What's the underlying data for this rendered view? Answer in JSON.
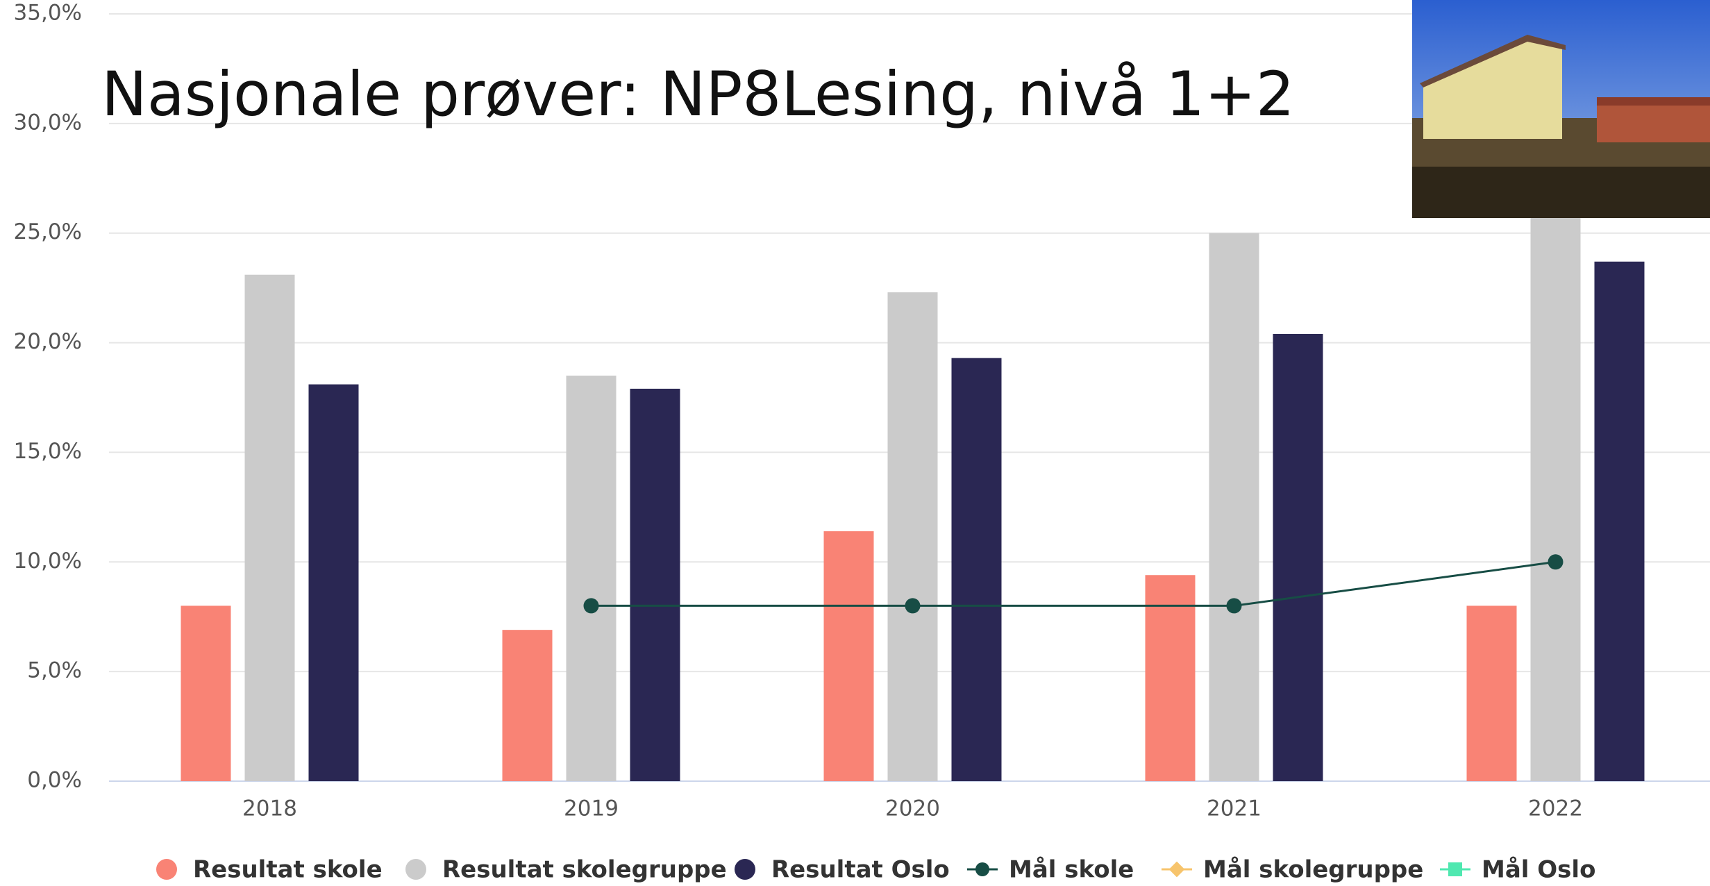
{
  "chart_data": {
    "type": "bar",
    "title": "Nasjonale prøver: NP8Lesing, nivå 1+2",
    "categories": [
      "2018",
      "2019",
      "2020",
      "2021",
      "2022"
    ],
    "series": [
      {
        "name": "Resultat skole",
        "type": "bar",
        "color": "#f98375",
        "values": [
          8.0,
          6.9,
          11.4,
          9.4,
          8.0
        ]
      },
      {
        "name": "Resultat skolegruppe",
        "type": "bar",
        "color": "#cbcbcb",
        "values": [
          23.1,
          18.5,
          22.3,
          25.0,
          27.0
        ]
      },
      {
        "name": "Resultat Oslo",
        "type": "bar",
        "color": "#2a2753",
        "values": [
          18.1,
          17.9,
          19.3,
          20.4,
          23.7
        ]
      },
      {
        "name": "Mål skole",
        "type": "line",
        "color": "#174d45",
        "values": [
          null,
          8.0,
          8.0,
          8.0,
          10.0
        ]
      },
      {
        "name": "Mål skolegruppe",
        "type": "line",
        "color": "#f7c46c",
        "values": [
          null,
          null,
          null,
          null,
          null
        ]
      },
      {
        "name": "Mål Oslo",
        "type": "line",
        "color": "#4fe8b0",
        "values": [
          null,
          null,
          null,
          null,
          null
        ]
      }
    ],
    "ylim": [
      0,
      35
    ],
    "yticks": [
      {
        "value": 0,
        "label": "0,0%"
      },
      {
        "value": 5,
        "label": "5,0%"
      },
      {
        "value": 10,
        "label": "10,0%"
      },
      {
        "value": 15,
        "label": "15,0%"
      },
      {
        "value": 20,
        "label": "20,0%"
      },
      {
        "value": 25,
        "label": "25,0%"
      },
      {
        "value": 30,
        "label": "30,0%"
      },
      {
        "value": 35,
        "label": "35,0%"
      }
    ],
    "grid": true
  }
}
